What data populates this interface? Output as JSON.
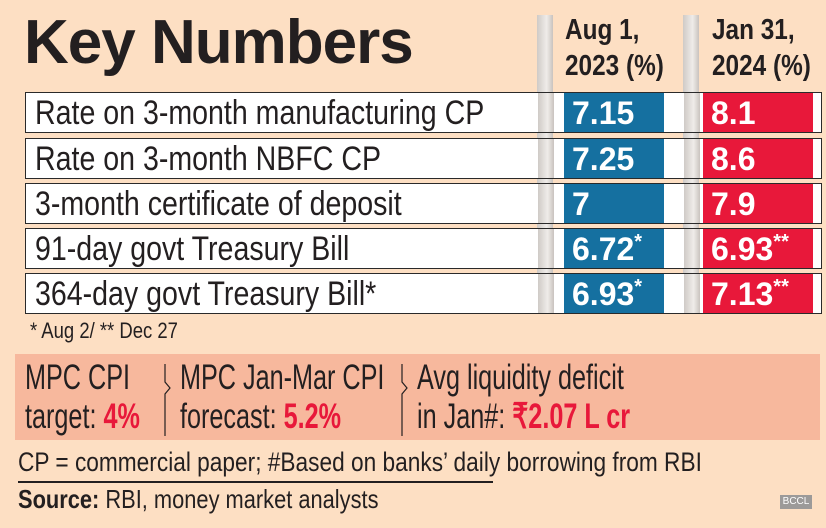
{
  "title": "Key Numbers",
  "columns": {
    "c1": [
      "Aug 1,",
      "2023 (%)"
    ],
    "c2": [
      "Jan 31,",
      "2024 (%)"
    ]
  },
  "rows": [
    {
      "label": "Rate on 3-month manufacturing CP",
      "v1": "7.15",
      "m1": "",
      "v2": "8.1",
      "m2": ""
    },
    {
      "label": "Rate on 3-month NBFC CP",
      "v1": "7.25",
      "m1": "",
      "v2": "8.6",
      "m2": ""
    },
    {
      "label": "3-month certificate of deposit",
      "v1": "7",
      "m1": "",
      "v2": "7.9",
      "m2": ""
    },
    {
      "label": "91-day govt Treasury Bill",
      "v1": "6.72",
      "m1": "*",
      "v2": "6.93",
      "m2": "**"
    },
    {
      "label": "364-day govt Treasury Bill*",
      "v1": "6.93",
      "m1": "*",
      "v2": "7.13",
      "m2": "**"
    }
  ],
  "note": "* Aug 2/ ** Dec 27",
  "highlights": [
    {
      "line1": "MPC CPI",
      "line2": "target: ",
      "value": "4%"
    },
    {
      "line1": "MPC Jan-Mar CPI",
      "line2": "forecast: ",
      "value": "5.2%"
    },
    {
      "line1": "Avg liquidity deficit",
      "line2": "in Jan#: ",
      "value": "₹2.07 L cr"
    }
  ],
  "footnote": "CP = commercial paper; #Based on banks’ daily borrowing from RBI",
  "source": {
    "label": "Source:",
    "text": " RBI, money market analysts"
  },
  "watermark": "BCCL",
  "colors": {
    "aug": "#1570a0",
    "jan": "#e8183a",
    "background": "#fddfc3",
    "highlight_box": "#f7b89d"
  }
}
